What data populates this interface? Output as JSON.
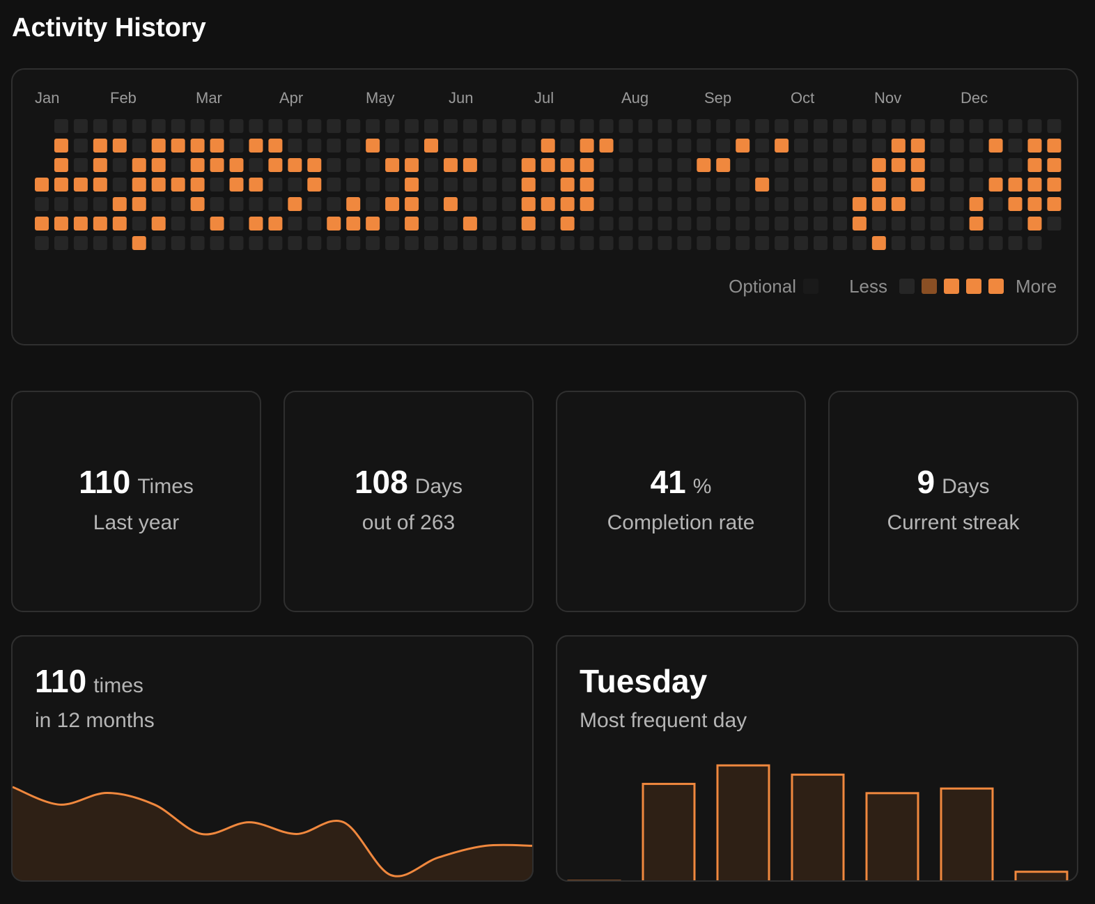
{
  "header": {
    "title": "Activity History"
  },
  "heatmap": {
    "months": [
      "Jan",
      "Feb",
      "Mar",
      "Apr",
      "May",
      "Jun",
      "Jul",
      "Aug",
      "Sep",
      "Oct",
      "Nov",
      "Dec"
    ],
    "rows": [
      [
        null,
        0,
        0,
        0,
        0,
        0,
        0,
        0,
        0,
        0,
        0,
        0,
        0,
        0,
        0,
        0,
        0,
        0,
        0,
        0,
        0,
        0,
        0,
        0,
        0,
        0,
        0,
        0,
        0,
        0,
        0,
        0,
        0,
        0,
        0,
        0,
        0,
        0,
        0,
        0,
        0,
        0,
        0,
        0,
        0,
        0,
        0,
        0,
        0,
        0,
        0,
        0,
        0
      ],
      [
        null,
        4,
        0,
        4,
        4,
        0,
        4,
        4,
        4,
        4,
        0,
        4,
        4,
        0,
        0,
        0,
        0,
        4,
        0,
        0,
        4,
        0,
        0,
        0,
        0,
        0,
        4,
        0,
        4,
        4,
        0,
        0,
        0,
        0,
        0,
        0,
        4,
        0,
        4,
        0,
        0,
        0,
        0,
        0,
        4,
        4,
        0,
        0,
        0,
        4,
        0,
        4,
        4
      ],
      [
        null,
        4,
        0,
        4,
        0,
        4,
        4,
        0,
        4,
        4,
        4,
        0,
        4,
        4,
        4,
        0,
        0,
        0,
        4,
        4,
        0,
        4,
        4,
        0,
        0,
        4,
        4,
        4,
        4,
        0,
        0,
        0,
        0,
        0,
        4,
        4,
        0,
        0,
        0,
        0,
        0,
        0,
        0,
        4,
        4,
        4,
        0,
        0,
        0,
        0,
        0,
        4,
        4
      ],
      [
        4,
        4,
        4,
        4,
        0,
        4,
        4,
        4,
        4,
        0,
        4,
        4,
        0,
        0,
        4,
        0,
        0,
        0,
        0,
        4,
        0,
        0,
        0,
        0,
        0,
        4,
        0,
        4,
        4,
        0,
        0,
        0,
        0,
        0,
        0,
        0,
        0,
        4,
        0,
        0,
        0,
        0,
        0,
        4,
        0,
        4,
        0,
        0,
        0,
        4,
        4,
        4,
        4
      ],
      [
        0,
        0,
        0,
        0,
        4,
        4,
        0,
        0,
        4,
        0,
        0,
        0,
        0,
        4,
        0,
        0,
        4,
        0,
        4,
        4,
        0,
        4,
        0,
        0,
        0,
        4,
        4,
        4,
        4,
        0,
        0,
        0,
        0,
        0,
        0,
        0,
        0,
        0,
        0,
        0,
        0,
        0,
        4,
        4,
        4,
        0,
        0,
        0,
        4,
        0,
        4,
        4,
        4
      ],
      [
        4,
        4,
        4,
        4,
        4,
        0,
        4,
        0,
        0,
        4,
        0,
        4,
        4,
        0,
        0,
        4,
        4,
        4,
        0,
        4,
        0,
        0,
        4,
        0,
        0,
        4,
        0,
        4,
        0,
        0,
        0,
        0,
        0,
        0,
        0,
        0,
        0,
        0,
        0,
        0,
        0,
        0,
        4,
        0,
        0,
        0,
        0,
        0,
        4,
        0,
        0,
        4,
        0
      ],
      [
        0,
        0,
        0,
        0,
        0,
        4,
        0,
        0,
        0,
        0,
        0,
        0,
        0,
        0,
        0,
        0,
        0,
        0,
        0,
        0,
        0,
        0,
        0,
        0,
        0,
        0,
        0,
        0,
        0,
        0,
        0,
        0,
        0,
        0,
        0,
        0,
        0,
        0,
        0,
        0,
        0,
        0,
        0,
        4,
        0,
        0,
        0,
        0,
        0,
        0,
        0,
        0,
        null
      ]
    ],
    "legend": {
      "optional_label": "Optional",
      "optional_color": "#1a1a1a",
      "less_label": "Less",
      "more_label": "More",
      "level_colors": [
        "#262626",
        "#8a4f24",
        "#f0883e",
        "#f0883e",
        "#f0883e"
      ]
    }
  },
  "stats": [
    {
      "value": 110,
      "unit": "Times",
      "label": "Last year"
    },
    {
      "value": 108,
      "unit": "Days",
      "label": "out of 263"
    },
    {
      "value": 41,
      "unit": "%",
      "label": "Completion rate"
    },
    {
      "value": 9,
      "unit": "Days",
      "label": "Current streak"
    }
  ],
  "monthly_card": {
    "value": 110,
    "unit": "times",
    "label": "in 12 months"
  },
  "day_card": {
    "value": "Tuesday",
    "label": "Most frequent day"
  },
  "chart_data": [
    {
      "type": "area",
      "values": [
        16,
        13,
        15,
        13,
        8,
        10,
        8,
        10,
        1,
        4,
        6,
        6
      ],
      "color": "#f0883e"
    },
    {
      "type": "bar",
      "values": [
        0,
        21,
        25,
        23,
        19,
        20,
        2
      ],
      "color": "#f0883e"
    }
  ]
}
